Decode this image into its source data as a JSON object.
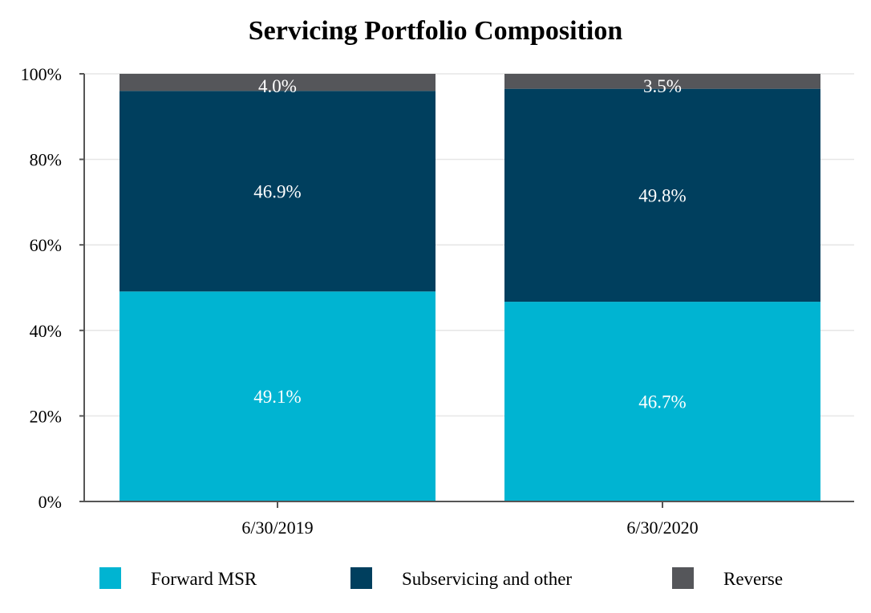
{
  "chart_data": {
    "type": "bar",
    "stacked": true,
    "title": "Servicing Portfolio Composition",
    "categories": [
      "6/30/2019",
      "6/30/2020"
    ],
    "series": [
      {
        "name": "Forward MSR",
        "values": [
          49.1,
          46.7
        ],
        "labels": [
          "49.1%",
          "46.7%"
        ],
        "color": "#00b4d2"
      },
      {
        "name": "Subservicing and other",
        "values": [
          46.9,
          49.8
        ],
        "labels": [
          "46.9%",
          "49.8%"
        ],
        "color": "#003f5e"
      },
      {
        "name": "Reverse",
        "values": [
          4.0,
          3.5
        ],
        "labels": [
          "4.0%",
          "3.5%"
        ],
        "color": "#55565a"
      }
    ],
    "yticks": [
      "0%",
      "20%",
      "40%",
      "60%",
      "80%",
      "100%"
    ],
    "ylim": [
      0,
      100
    ],
    "grid": true,
    "legend_position": "bottom"
  }
}
